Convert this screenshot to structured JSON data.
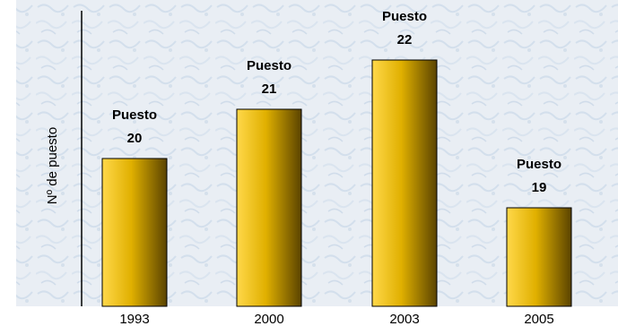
{
  "chart_data": {
    "type": "bar",
    "categories": [
      "1993",
      "2000",
      "2003",
      "2005"
    ],
    "values": [
      20,
      21,
      22,
      19
    ],
    "data_labels": [
      [
        "Puesto",
        "20"
      ],
      [
        "Puesto",
        "21"
      ],
      [
        "Puesto",
        "22"
      ],
      [
        "Puesto",
        "19"
      ]
    ],
    "title": "",
    "xlabel": "",
    "ylabel": "Nº de puesto",
    "ylim": [
      17,
      23
    ],
    "grid": false,
    "legend": "none"
  },
  "colors": {
    "background": "#e9eef4",
    "texture": "#d7e2ee",
    "bar_light": "#ffd84a",
    "bar_mid": "#e0b000",
    "bar_dark": "#5a4300",
    "axis": "#000000",
    "text": "#000000"
  }
}
